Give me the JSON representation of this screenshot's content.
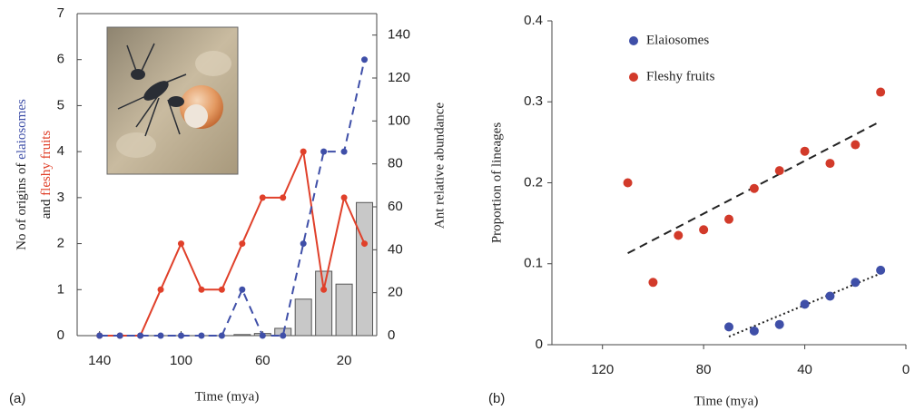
{
  "chart_data": [
    {
      "type": "line",
      "panel": "(a)",
      "xlabel": "Time (mya)",
      "ylabel_lines": [
        "No of origins of",
        "and"
      ],
      "y2label": "Ant relative abundance",
      "x": [
        140,
        130,
        120,
        110,
        100,
        90,
        80,
        70,
        60,
        50,
        40,
        30,
        20,
        10
      ],
      "xlim": [
        151,
        4
      ],
      "xticks": [
        140,
        100,
        60,
        20
      ],
      "ylim": [
        0,
        7
      ],
      "yticks": [
        0,
        1,
        2,
        3,
        4,
        5,
        6,
        7
      ],
      "y2lim": [
        0,
        150
      ],
      "y2ticks": [
        0,
        20,
        40,
        60,
        80,
        100,
        120,
        140
      ],
      "series": [
        {
          "name": "fleshy fruits",
          "color": "#e0402a",
          "style": "solid",
          "values": [
            0,
            0,
            0,
            1,
            2,
            1,
            1,
            2,
            3,
            3,
            4,
            1,
            3,
            2
          ]
        },
        {
          "name": "elaiosomes",
          "color": "#3f4fa8",
          "style": "dashed",
          "values": [
            0,
            0,
            0,
            0,
            0,
            0,
            0,
            1,
            0,
            0,
            2,
            4,
            4,
            6
          ]
        },
        {
          "type": "bar",
          "axis": "y2",
          "color": "#c8c8c8",
          "values": [
            0,
            0,
            0,
            0,
            0,
            0,
            0,
            0.5,
            1,
            3.4,
            17,
            30,
            24,
            62
          ]
        }
      ]
    },
    {
      "type": "scatter",
      "panel": "(b)",
      "xlabel": "Time (mya)",
      "ylabel": "Proportion of lineages",
      "xlim": [
        140,
        0
      ],
      "xticks": [
        120,
        80,
        40,
        0
      ],
      "ylim": [
        0,
        0.4
      ],
      "yticks": [
        0,
        0.1,
        0.2,
        0.3,
        0.4
      ],
      "legend": "upper left",
      "series": [
        {
          "name": "Elaiosomes",
          "color": "#3f4fa8",
          "x": [
            70,
            60,
            50,
            40,
            30,
            20,
            10
          ],
          "values": [
            0.022,
            0.017,
            0.025,
            0.05,
            0.06,
            0.077,
            0.092
          ]
        },
        {
          "name": "Fleshy fruits",
          "color": "#d23a2a",
          "x": [
            110,
            100,
            90,
            80,
            70,
            60,
            50,
            40,
            30,
            20,
            10
          ],
          "values": [
            0.2,
            0.077,
            0.135,
            0.142,
            0.155,
            0.193,
            0.215,
            0.239,
            0.224,
            0.247,
            0.312
          ]
        }
      ],
      "trendlines": [
        {
          "color": "#222222",
          "style": "dotted",
          "x": [
            70,
            10
          ],
          "values": [
            0.01,
            0.088
          ]
        },
        {
          "color": "#222222",
          "style": "dashed",
          "x": [
            110,
            10
          ],
          "values": [
            0.113,
            0.276
          ]
        }
      ]
    }
  ]
}
